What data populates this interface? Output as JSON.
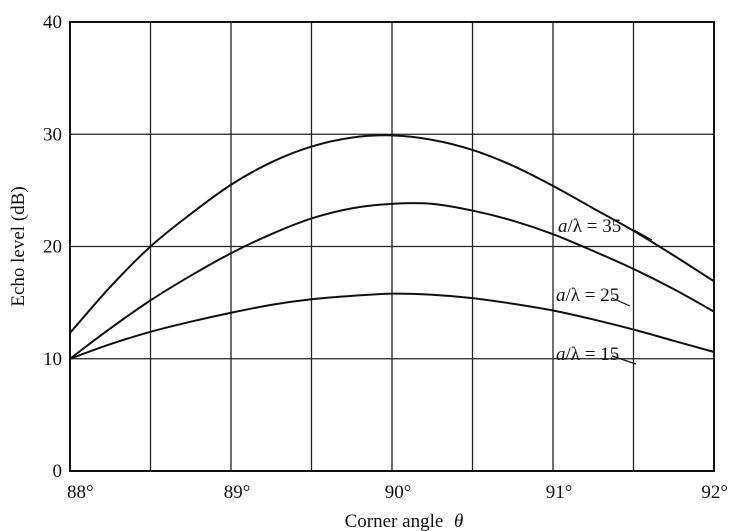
{
  "chart_data": {
    "type": "line",
    "xlabel_main": "Corner angle",
    "xlabel_symbol": "θ",
    "ylabel": "Echo level (dB)",
    "xlim": [
      88,
      92
    ],
    "ylim": [
      0,
      40
    ],
    "x_ticks": [
      88,
      89,
      90,
      91,
      92
    ],
    "x_tick_labels": [
      "88°",
      "89°",
      "90°",
      "91°",
      "92°"
    ],
    "y_ticks": [
      0,
      10,
      20,
      30,
      40
    ],
    "y_tick_labels": [
      "0",
      "10",
      "20",
      "30",
      "40"
    ],
    "grid": true,
    "series": [
      {
        "name": "a/λ = 35",
        "label_italic": "a",
        "label_rest": "/λ = 35",
        "x": [
          88.0,
          88.25,
          88.5,
          88.75,
          89.0,
          89.25,
          89.5,
          89.75,
          90.0,
          90.25,
          90.5,
          90.75,
          91.0,
          91.25,
          91.5,
          91.75,
          92.0
        ],
        "y": [
          12.3,
          16.4,
          20.0,
          22.9,
          25.5,
          27.5,
          28.9,
          29.7,
          29.9,
          29.5,
          28.6,
          27.2,
          25.4,
          23.4,
          21.4,
          19.2,
          16.9
        ]
      },
      {
        "name": "a/λ = 25",
        "label_italic": "a",
        "label_rest": "/λ = 25",
        "x": [
          88.0,
          88.25,
          88.5,
          88.75,
          89.0,
          89.25,
          89.5,
          89.75,
          90.0,
          90.25,
          90.5,
          90.75,
          91.0,
          91.25,
          91.5,
          91.75,
          92.0
        ],
        "y": [
          10.0,
          12.7,
          15.2,
          17.4,
          19.4,
          21.1,
          22.5,
          23.4,
          23.8,
          23.8,
          23.2,
          22.3,
          21.1,
          19.6,
          18.0,
          16.2,
          14.2
        ]
      },
      {
        "name": "a/λ = 15",
        "label_italic": "a",
        "label_rest": "/λ = 15",
        "x": [
          88.0,
          88.25,
          88.5,
          88.75,
          89.0,
          89.25,
          89.5,
          89.75,
          90.0,
          90.25,
          90.5,
          90.75,
          91.0,
          91.25,
          91.5,
          91.75,
          92.0
        ],
        "y": [
          10.0,
          11.3,
          12.4,
          13.3,
          14.1,
          14.8,
          15.3,
          15.6,
          15.8,
          15.7,
          15.4,
          14.9,
          14.3,
          13.5,
          12.6,
          11.6,
          10.6
        ]
      }
    ]
  }
}
